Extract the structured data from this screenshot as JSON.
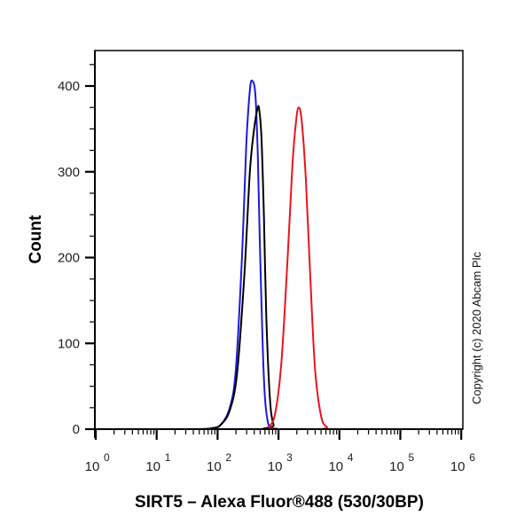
{
  "chart_data": {
    "type": "line",
    "title": "",
    "xlabel": "SIRT5 – Alexa Fluor®488 (530/30BP)",
    "ylabel": "Count",
    "x_scale": "log10",
    "xlim": [
      1,
      1000000
    ],
    "ylim": [
      0,
      440
    ],
    "x_ticks": [
      {
        "base": "10",
        "exp": "0",
        "value": 1
      },
      {
        "base": "10",
        "exp": "1",
        "value": 10
      },
      {
        "base": "10",
        "exp": "2",
        "value": 100
      },
      {
        "base": "10",
        "exp": "3",
        "value": 1000
      },
      {
        "base": "10",
        "exp": "4",
        "value": 10000
      },
      {
        "base": "10",
        "exp": "5",
        "value": 100000
      },
      {
        "base": "10",
        "exp": "6",
        "value": 1000000
      }
    ],
    "y_ticks": [
      "0",
      "100",
      "200",
      "300",
      "400"
    ],
    "grid": false,
    "legend": null,
    "annotation": "Copyright (c) 2020 Abcam Plc",
    "series": [
      {
        "name": "blue",
        "color": "#1a1adc",
        "log_x": [
          0.0,
          1.6,
          1.9,
          2.05,
          2.2,
          2.3,
          2.4,
          2.47,
          2.53,
          2.57,
          2.62,
          2.66,
          2.7,
          2.76,
          2.82,
          2.9,
          3.0,
          6.0
        ],
        "values": [
          0,
          0,
          1,
          5,
          25,
          70,
          200,
          330,
          395,
          406,
          390,
          320,
          200,
          60,
          10,
          1,
          0,
          0
        ]
      },
      {
        "name": "black",
        "color": "#000000",
        "log_x": [
          0.0,
          1.6,
          1.9,
          2.05,
          2.2,
          2.32,
          2.44,
          2.53,
          2.6,
          2.65,
          2.68,
          2.72,
          2.76,
          2.8,
          2.86,
          2.92,
          3.0,
          6.0
        ],
        "values": [
          0,
          0,
          1,
          5,
          22,
          65,
          180,
          300,
          350,
          372,
          374,
          340,
          250,
          130,
          35,
          5,
          0,
          0
        ]
      },
      {
        "name": "red",
        "color": "#e8141c",
        "log_x": [
          0.0,
          2.75,
          2.85,
          2.95,
          3.05,
          3.15,
          3.23,
          3.29,
          3.33,
          3.38,
          3.45,
          3.52,
          3.6,
          3.7,
          3.8,
          3.9,
          6.0
        ],
        "values": [
          0,
          0,
          3,
          20,
          80,
          200,
          310,
          360,
          375,
          360,
          290,
          180,
          70,
          15,
          2,
          0,
          0
        ]
      }
    ]
  }
}
